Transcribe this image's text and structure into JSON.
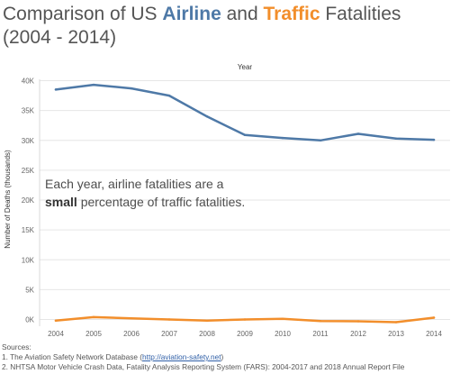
{
  "title": {
    "prefix": "Comparison of US ",
    "airline_word": "Airline",
    "middle": " and ",
    "traffic_word": "Traffic",
    "suffix": " Fatalities",
    "line2": "(2004 - 2014)"
  },
  "annotation": {
    "part1": "Each year, airline fatalities are a ",
    "bold": "small",
    "part2": " percentage of traffic fatalities."
  },
  "sources": {
    "heading": "Sources:",
    "item1_prefix": "1. The Aviation Safety Network Database (",
    "item1_link": "http://aviation-safety.net",
    "item1_suffix": ")",
    "item2": "2. NHTSA Motor Vehicle Crash Data, Fatality Analysis Reporting System (FARS): 2004-2017 and 2018 Annual Report File"
  },
  "colors": {
    "airline": "#f28e2b",
    "traffic": "#4e79a7",
    "grid": "#e6e6e6"
  },
  "chart_data": {
    "type": "line",
    "title": "Comparison of US Airline and Traffic Fatalities (2004 - 2014)",
    "xlabel": "Year",
    "ylabel": "Number of Deaths (thousands)",
    "x": [
      2004,
      2005,
      2006,
      2007,
      2008,
      2009,
      2010,
      2011,
      2012,
      2013,
      2014
    ],
    "ylim": [
      0,
      40000
    ],
    "y_ticks": [
      0,
      5000,
      10000,
      15000,
      20000,
      25000,
      30000,
      35000,
      40000
    ],
    "y_tick_labels": [
      "0K",
      "5K",
      "10K",
      "15K",
      "20K",
      "25K",
      "30K",
      "35K",
      "40K"
    ],
    "grid": "horizontal",
    "series": [
      {
        "name": "Traffic",
        "color": "#4e79a7",
        "values": [
          38500,
          39300,
          38700,
          37500,
          34000,
          30900,
          30400,
          30000,
          31100,
          30300,
          30100
        ]
      },
      {
        "name": "Airline",
        "color": "#f28e2b",
        "values": [
          -200,
          400,
          200,
          0,
          -200,
          0,
          100,
          -250,
          -300,
          -450,
          300
        ]
      }
    ]
  }
}
